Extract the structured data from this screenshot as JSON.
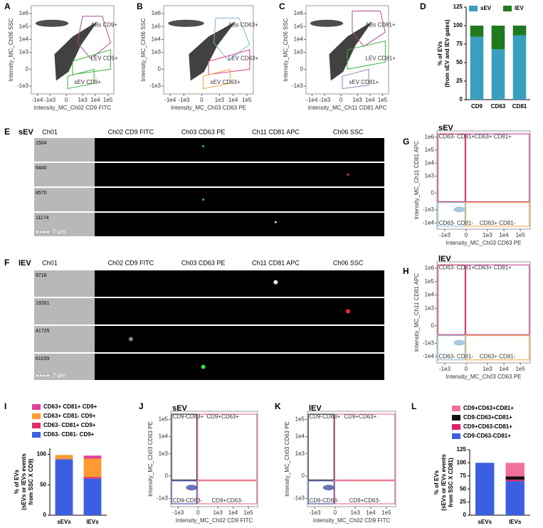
{
  "chart_data": [
    {
      "type": "flow",
      "label": "A",
      "scale": "biexponential",
      "xlabel": "Intensity_MC_Ch02 CD9 FITC",
      "ylabel": "Intensity_MC_Ch06 SSC",
      "xlim": [
        -30000,
        300000
      ],
      "ylim": [
        -4000,
        4000000
      ],
      "xticks": [
        {
          "value": -10000,
          "label": "-1e4"
        },
        {
          "value": -1000,
          "label": "-1e3"
        },
        0,
        {
          "value": 1000,
          "label": "1e3"
        },
        {
          "value": 10000,
          "label": "1e4"
        },
        {
          "value": 100000,
          "label": "1e5"
        }
      ],
      "yticks": [
        {
          "value": -1000,
          "label": "-1e3"
        },
        0,
        {
          "value": 1000,
          "label": "1e3"
        },
        {
          "value": 10000,
          "label": "1e4"
        },
        {
          "value": 100000,
          "label": "1e5"
        },
        {
          "value": 1000000,
          "label": "1e6"
        }
      ],
      "gates": [
        {
          "label": "ABs CD9+",
          "color": "#b04c95"
        },
        {
          "label": "LEV CD9+",
          "color": "#3cb043"
        },
        {
          "label": "sEV CD9+",
          "color": "#3cb043"
        }
      ]
    },
    {
      "type": "flow",
      "label": "B",
      "scale": "biexponential",
      "xlabel": "Intensity_MC_Ch03 CD63 PE",
      "ylabel": "Intensity_MC_Ch06 SSC",
      "xlim": [
        -30000,
        300000
      ],
      "ylim": [
        -4000,
        4000000
      ],
      "xticks": [
        {
          "value": -10000,
          "label": "-1e4"
        },
        {
          "value": -1000,
          "label": "-1e3"
        },
        0,
        {
          "value": 1000,
          "label": "1e3"
        },
        {
          "value": 10000,
          "label": "1e4"
        },
        {
          "value": 100000,
          "label": "1e5"
        }
      ],
      "yticks": [
        {
          "value": -1000,
          "label": "-1e3"
        },
        0,
        {
          "value": 1000,
          "label": "1e3"
        },
        {
          "value": 10000,
          "label": "1e4"
        },
        {
          "value": 100000,
          "label": "1e5"
        },
        {
          "value": 1000000,
          "label": "1e6"
        }
      ],
      "gates": [
        {
          "label": "ABs CD63+",
          "color": "#7fb3d5"
        },
        {
          "label": "LEV CD63+",
          "color": "#d9408a"
        },
        {
          "label": "sEV CD63+",
          "color": "#f0a030"
        }
      ]
    },
    {
      "type": "flow",
      "label": "C",
      "scale": "biexponential",
      "xlabel": "Intensity_MC_Ch11 CD81 APC",
      "ylabel": "Intensity_MC_Ch06 SSC",
      "xlim": [
        -30000,
        300000
      ],
      "ylim": [
        -4000,
        4000000
      ],
      "xticks": [
        {
          "value": -10000,
          "label": "-1e4"
        },
        {
          "value": -1000,
          "label": "-1e3"
        },
        0,
        {
          "value": 1000,
          "label": "1e3"
        },
        {
          "value": 10000,
          "label": "1e4"
        },
        {
          "value": 100000,
          "label": "1e5"
        }
      ],
      "yticks": [
        {
          "value": -1000,
          "label": "-1e3"
        },
        0,
        {
          "value": 1000,
          "label": "1e3"
        },
        {
          "value": 10000,
          "label": "1e4"
        },
        {
          "value": 100000,
          "label": "1e5"
        },
        {
          "value": 1000000,
          "label": "1e6"
        }
      ],
      "gates": [
        {
          "label": "ABs CD81+",
          "color": "#b04c95"
        },
        {
          "label": "LEV CD81+",
          "color": "#3cb043"
        },
        {
          "label": "sEV CD81+",
          "color": "#9080c0"
        }
      ]
    },
    {
      "type": "bar",
      "label": "D",
      "ylabel": [
        "% of EVs",
        "(from sEV and lEV gates)"
      ],
      "categories": [
        "CD9",
        "CD63",
        "CD81"
      ],
      "ylim": [
        0,
        125
      ],
      "yticks": [
        0,
        25,
        50,
        75,
        100,
        125
      ],
      "legend": "top",
      "series": [
        {
          "name": "sEV",
          "color": "#3a9fbf",
          "values": [
            85,
            68,
            87
          ]
        },
        {
          "name": "lEV",
          "color": "#1f7a1f",
          "values": [
            15,
            32,
            13
          ]
        }
      ]
    },
    {
      "type": "quadrant",
      "label": "G",
      "title": "sEV",
      "scale": "biexponential",
      "xlabel": "Intensity_MC_Ch03 CD63 PE",
      "ylabel": "Intensity_MC_Ch11 CD81 APC",
      "xlim": [
        -3000,
        400000
      ],
      "ylim": [
        -30000,
        3000000
      ],
      "xticks": [
        {
          "value": -1000,
          "label": "-1e3"
        },
        0,
        {
          "value": 1000,
          "label": "1e3"
        },
        {
          "value": 10000,
          "label": "1e4"
        },
        {
          "value": 100000,
          "label": "1e5"
        }
      ],
      "yticks": [
        {
          "value": -10000,
          "label": "-1e4"
        },
        {
          "value": -1000,
          "label": "-1e3"
        },
        0,
        {
          "value": 1000,
          "label": "1e3"
        },
        {
          "value": 10000,
          "label": "1e4"
        },
        {
          "value": 100000,
          "label": "1e5"
        },
        {
          "value": 1000000,
          "label": "1e6"
        }
      ],
      "gates": [
        {
          "label": "CD63- CD81+",
          "color": "#c0204a"
        },
        {
          "label": "CD63+ CD81+",
          "color": "#c0308a"
        },
        {
          "label": "CD63- CD81-",
          "color": "#7fb3d5"
        },
        {
          "label": "CD63+ CD81-",
          "color": "#f0a030"
        }
      ]
    },
    {
      "type": "quadrant",
      "label": "H",
      "title": "lEV",
      "scale": "biexponential",
      "xlabel": "Intensity_MC_Ch03 CD63 PE",
      "ylabel": "Intensity_MC_Ch11 CD81 APC",
      "xlim": [
        -3000,
        400000
      ],
      "ylim": [
        -30000,
        3000000
      ],
      "xticks": [
        {
          "value": -1000,
          "label": "-1e3"
        },
        0,
        {
          "value": 1000,
          "label": "1e3"
        },
        {
          "value": 10000,
          "label": "1e4"
        },
        {
          "value": 100000,
          "label": "1e5"
        }
      ],
      "yticks": [
        {
          "value": -10000,
          "label": "-1e4"
        },
        {
          "value": -1000,
          "label": "-1e3"
        },
        0,
        {
          "value": 1000,
          "label": "1e3"
        },
        {
          "value": 10000,
          "label": "1e4"
        },
        {
          "value": 100000,
          "label": "1e5"
        },
        {
          "value": 1000000,
          "label": "1e6"
        }
      ],
      "gates": [
        {
          "label": "CD63- CD81+",
          "color": "#c0204a"
        },
        {
          "label": "CD63+ CD81+",
          "color": "#c0308a"
        },
        {
          "label": "CD63- CD81-",
          "color": "#7fb3d5"
        },
        {
          "label": "CD63+ CD81-",
          "color": "#f0a030"
        }
      ]
    },
    {
      "type": "bar",
      "label": "I",
      "ylabel": [
        "% of EVs",
        "(sEVs or lEVs events",
        "from SSC X CD9)"
      ],
      "categories": [
        "sEVs",
        "lEVs"
      ],
      "ylim": [
        0,
        110
      ],
      "yticks": [
        0,
        50,
        100
      ],
      "legend": "above",
      "series": [
        {
          "name": "CD63- CD81- CD9+",
          "color": "#3b5fe0",
          "values": [
            92,
            60
          ]
        },
        {
          "name": "CD63- CD81+ CD9+",
          "color": "#e0306a",
          "values": [
            0,
            3
          ]
        },
        {
          "name": "CD63+ CD81- CD9+",
          "color": "#ff9a30",
          "values": [
            7,
            30
          ]
        },
        {
          "name": "CD63+ CD81+ CD9+",
          "color": "#e040a0",
          "values": [
            0,
            5
          ]
        }
      ]
    },
    {
      "type": "quadrant",
      "label": "J",
      "title": "sEV",
      "scale": "biexponential",
      "xlabel": "Intensity_MC_Ch02 CD9 FITC",
      "ylabel": "Intensity_MC_Ch03 CD63 PE",
      "xlim": [
        -3000,
        400000
      ],
      "ylim": [
        -3000,
        300000
      ],
      "xticks": [
        {
          "value": -1000,
          "label": "-1e3"
        },
        0,
        {
          "value": 1000,
          "label": "1e3"
        },
        {
          "value": 10000,
          "label": "1e4"
        },
        {
          "value": 100000,
          "label": "1e5"
        }
      ],
      "yticks": [
        {
          "value": -1000,
          "label": "-1e3"
        },
        0,
        {
          "value": 1000,
          "label": "1e3"
        },
        {
          "value": 10000,
          "label": "1e4"
        },
        {
          "value": 100000,
          "label": "1e5"
        }
      ],
      "gates": [
        {
          "label": "CD9-CD63+",
          "color": "#222222"
        },
        {
          "label": "CD9+CD63+",
          "color": "#e0607a"
        },
        {
          "label": "CD9-CD63-",
          "color": "#2a3a9a"
        },
        {
          "label": "CD9+CD63-",
          "color": "#e0607a"
        }
      ]
    },
    {
      "type": "quadrant",
      "label": "K",
      "title": "lEV",
      "scale": "biexponential",
      "xlabel": "Intensity_MC_Ch02 CD9 FITC",
      "ylabel": "Intensity_MC_Ch03 CD63 PE",
      "xlim": [
        -3000,
        400000
      ],
      "ylim": [
        -3000,
        300000
      ],
      "xticks": [
        {
          "value": -1000,
          "label": "-1e3"
        },
        0,
        {
          "value": 1000,
          "label": "1e3"
        },
        {
          "value": 10000,
          "label": "1e4"
        },
        {
          "value": 100000,
          "label": "1e5"
        }
      ],
      "yticks": [
        {
          "value": -1000,
          "label": "-1e3"
        },
        0,
        {
          "value": 1000,
          "label": "1e3"
        },
        {
          "value": 10000,
          "label": "1e4"
        },
        {
          "value": 100000,
          "label": "1e5"
        }
      ],
      "gates": [
        {
          "label": "CD9-CD63+",
          "color": "#222222"
        },
        {
          "label": "CD9+CD63+",
          "color": "#e0607a"
        },
        {
          "label": "CD9-CD63-",
          "color": "#2a3a9a"
        },
        {
          "label": "CD9+CD63-",
          "color": "#e0607a"
        }
      ]
    },
    {
      "type": "bar",
      "label": "L",
      "ylabel": [
        "% of EVs",
        "(sEVs or lEVs events",
        "from SSC X CD81)"
      ],
      "categories": [
        "sEVs",
        "lEVs"
      ],
      "ylim": [
        0,
        125
      ],
      "yticks": [
        0,
        25,
        50,
        75,
        100,
        125
      ],
      "legend": "above",
      "series": [
        {
          "name": "CD9-CD63-CD81+",
          "color": "#3b5fe0",
          "values": [
            100,
            65
          ]
        },
        {
          "name": "CD9+CD63-CD81+",
          "color": "#e0206a",
          "values": [
            0,
            3
          ]
        },
        {
          "name": "CD9-CD63+CD81+",
          "color": "#111111",
          "values": [
            0,
            6
          ]
        },
        {
          "name": "CD9+CD63+CD81+",
          "color": "#f2709c",
          "values": [
            0,
            26
          ]
        }
      ]
    }
  ],
  "image_panels": [
    {
      "label": "E",
      "title": "sEV",
      "channels": [
        "Ch01",
        "Ch02 CD9 FITC",
        "Ch03 CD63 PE",
        "Ch11 CD81 APC",
        "Ch06 SSC"
      ],
      "rows": [
        "1504",
        "6440",
        "8570",
        "11174"
      ],
      "scale_bar": "7 µm"
    },
    {
      "label": "F",
      "title": "lEV",
      "channels": [
        "Ch01",
        "Ch02 CD9 FITC",
        "Ch03 CD63 PE",
        "Ch11 CD81 APC",
        "Ch06 SSC"
      ],
      "rows": [
        "9718",
        "19261",
        "41725",
        "61039"
      ],
      "scale_bar": "7 µm"
    }
  ]
}
